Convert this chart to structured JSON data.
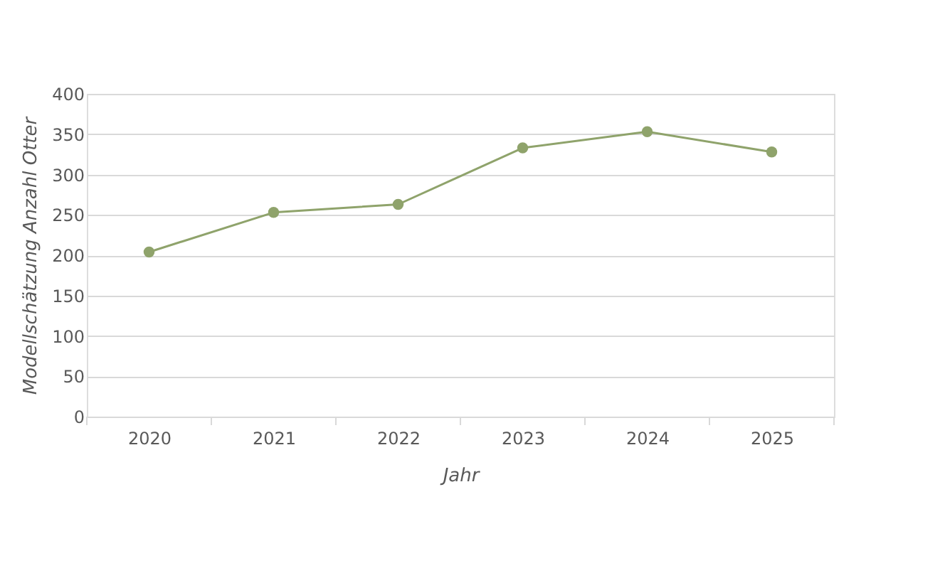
{
  "chart_data": {
    "type": "line",
    "xlabel": "Jahr",
    "ylabel": "Modellschätzung Anzahl Otter",
    "categories": [
      "2020",
      "2021",
      "2022",
      "2023",
      "2024",
      "2025"
    ],
    "series": [
      {
        "color": "#8fa36b",
        "values": [
          204,
          253,
          263,
          333,
          353,
          328
        ]
      }
    ],
    "ylim": [
      0,
      400
    ],
    "yticks": [
      0,
      50,
      100,
      150,
      200,
      250,
      300,
      350,
      400
    ],
    "grid": "y",
    "marker": "circle",
    "line_style": "solid"
  }
}
